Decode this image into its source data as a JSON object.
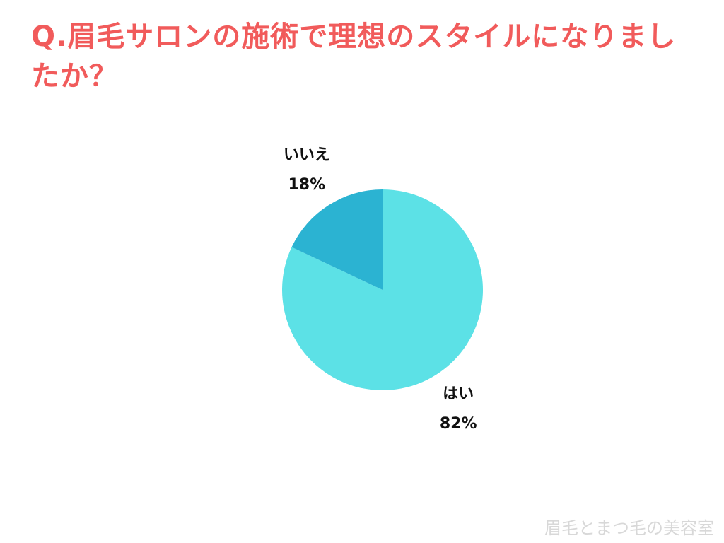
{
  "chart_data": {
    "type": "pie",
    "title": "Q.眉毛サロンの施術で理想のスタイルになりましたか？",
    "categories": [
      "はい",
      "いいえ"
    ],
    "values": [
      82,
      18
    ],
    "value_labels": [
      "82%",
      "18%"
    ],
    "colors": [
      "#5ce1e6",
      "#2bb3d2"
    ]
  },
  "footer": {
    "watermark": "眉毛とまつ毛の美容室"
  }
}
